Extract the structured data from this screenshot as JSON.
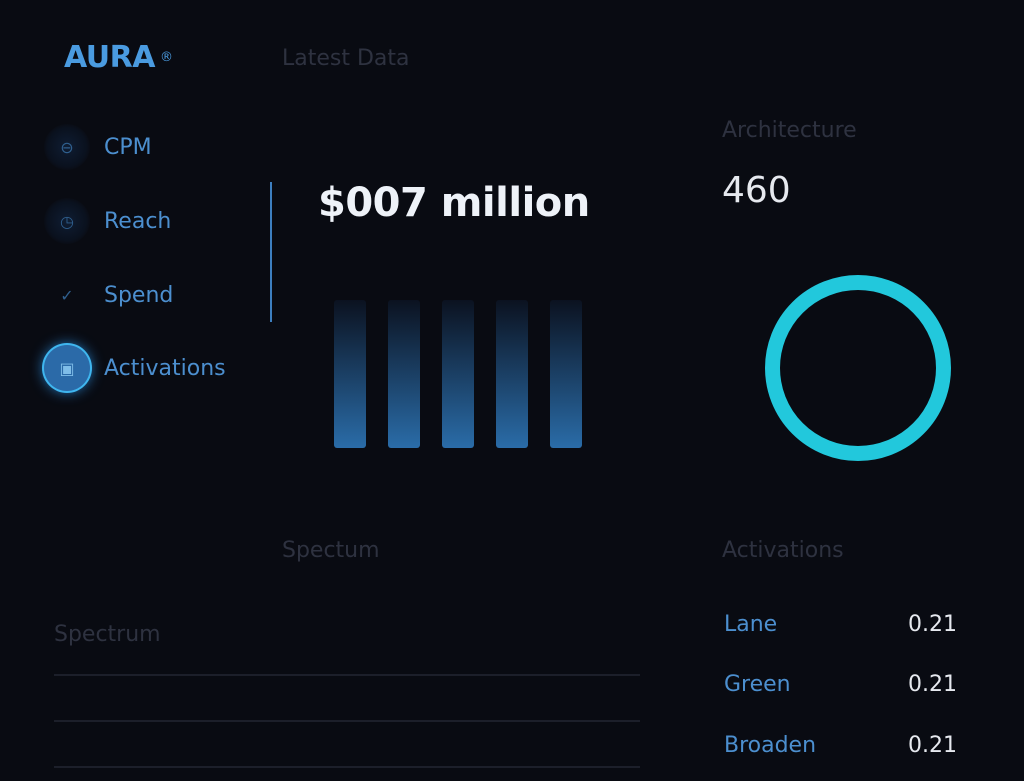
{
  "brand": {
    "name": "AURA",
    "mark": "®"
  },
  "header": {
    "title": "Latest Data"
  },
  "sidebar": {
    "items": [
      {
        "label": "CPM",
        "icon": "minus-circle-icon",
        "active": false
      },
      {
        "label": "Reach",
        "icon": "clock-icon",
        "active": false
      },
      {
        "label": "Spend",
        "icon": "check-icon",
        "active": false
      },
      {
        "label": "Activations",
        "icon": "inbox-icon",
        "active": true
      }
    ]
  },
  "main": {
    "headline_value": "$007 million",
    "bar_levels": [
      1,
      1,
      1,
      1,
      1
    ]
  },
  "architecture": {
    "label": "Architecture",
    "value": "460",
    "ring_color": "#22c8dc"
  },
  "spectrum": {
    "heading": "Spectum",
    "label": "Spectrum"
  },
  "activations": {
    "title": "Activations",
    "rows": [
      {
        "name": "Lane",
        "value": "0.21"
      },
      {
        "name": "Green",
        "value": "0.21"
      },
      {
        "name": "Broaden",
        "value": "0.21"
      }
    ]
  }
}
